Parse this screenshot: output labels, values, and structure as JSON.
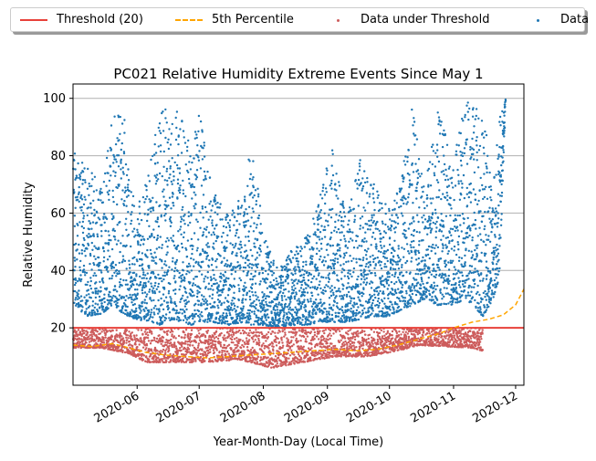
{
  "legend": {
    "items": [
      {
        "label": "Threshold (20)",
        "kind": "solid-line",
        "color": "#e8413a"
      },
      {
        "label": "5th Percentile",
        "kind": "dashed-line",
        "color": "#ffa500"
      },
      {
        "label": "Data under Threshold",
        "kind": "dot",
        "color": "#cd5c5c"
      },
      {
        "label": "Data",
        "kind": "dot",
        "color": "#1f77b4"
      }
    ]
  },
  "chart_data": {
    "type": "scatter",
    "title": "PC021 Relative Humidity Extreme Events Since May 1",
    "xlabel": "Year-Month-Day (Local Time)",
    "ylabel": "Relative Humidity",
    "xlim": [
      "2020-05-01",
      "2020-12-05"
    ],
    "ylim": [
      0,
      105
    ],
    "x_tick_labels": [
      "2020-06",
      "2020-07",
      "2020-08",
      "2020-09",
      "2020-10",
      "2020-11",
      "2020-12"
    ],
    "x_ticks": [
      "2020-06-01",
      "2020-07-01",
      "2020-08-01",
      "2020-09-01",
      "2020-10-01",
      "2020-11-01",
      "2020-12-01"
    ],
    "y_ticks": [
      20,
      40,
      60,
      80,
      100
    ],
    "y_tick_labels": [
      "20",
      "40",
      "60",
      "80",
      "100"
    ],
    "grid": "horizontal",
    "threshold": {
      "name": "Threshold (20)",
      "value": 20,
      "color": "#e8413a"
    },
    "percentile_5th": {
      "name": "5th Percentile",
      "color": "#ffa500",
      "points": [
        [
          "2020-05-01",
          14
        ],
        [
          "2020-05-10",
          13.5
        ],
        [
          "2020-05-20",
          14.5
        ],
        [
          "2020-05-28",
          13
        ],
        [
          "2020-06-05",
          11.5
        ],
        [
          "2020-06-15",
          10.5
        ],
        [
          "2020-06-25",
          10
        ],
        [
          "2020-07-05",
          9.5
        ],
        [
          "2020-07-15",
          10
        ],
        [
          "2020-07-25",
          10.5
        ],
        [
          "2020-08-05",
          11
        ],
        [
          "2020-08-15",
          11.5
        ],
        [
          "2020-08-25",
          12
        ],
        [
          "2020-09-05",
          12.5
        ],
        [
          "2020-09-15",
          12
        ],
        [
          "2020-09-25",
          12.5
        ],
        [
          "2020-10-05",
          14
        ],
        [
          "2020-10-15",
          16
        ],
        [
          "2020-10-25",
          18
        ],
        [
          "2020-11-01",
          20
        ],
        [
          "2020-11-10",
          22
        ],
        [
          "2020-11-18",
          23
        ],
        [
          "2020-11-25",
          24.5
        ],
        [
          "2020-12-01",
          28
        ],
        [
          "2020-12-05",
          33.5
        ]
      ]
    },
    "series": [
      {
        "name": "Data",
        "color": "#1f77b4",
        "envelope": [
          [
            "2020-05-01",
            28,
            82
          ],
          [
            "2020-05-08",
            24,
            76
          ],
          [
            "2020-05-15",
            25,
            70
          ],
          [
            "2020-05-20",
            28,
            93
          ],
          [
            "2020-05-25",
            25,
            97
          ],
          [
            "2020-05-31",
            23,
            60
          ],
          [
            "2020-06-06",
            22,
            74
          ],
          [
            "2020-06-12",
            21,
            97
          ],
          [
            "2020-06-18",
            23,
            95
          ],
          [
            "2020-06-22",
            22,
            97
          ],
          [
            "2020-06-27",
            21,
            80
          ],
          [
            "2020-07-01",
            22,
            96
          ],
          [
            "2020-07-07",
            22,
            68
          ],
          [
            "2020-07-15",
            21,
            60
          ],
          [
            "2020-07-22",
            22,
            67
          ],
          [
            "2020-07-26",
            21,
            85
          ],
          [
            "2020-08-01",
            21,
            55
          ],
          [
            "2020-08-08",
            20,
            40
          ],
          [
            "2020-08-15",
            21,
            48
          ],
          [
            "2020-08-22",
            21,
            52
          ],
          [
            "2020-08-28",
            22,
            65
          ],
          [
            "2020-09-03",
            22,
            84
          ],
          [
            "2020-09-10",
            22,
            58
          ],
          [
            "2020-09-17",
            23,
            80
          ],
          [
            "2020-09-22",
            24,
            72
          ],
          [
            "2020-09-30",
            24,
            62
          ],
          [
            "2020-10-06",
            26,
            70
          ],
          [
            "2020-10-12",
            28,
            97
          ],
          [
            "2020-10-18",
            30,
            68
          ],
          [
            "2020-10-24",
            28,
            99
          ],
          [
            "2020-10-31",
            28,
            78
          ],
          [
            "2020-11-07",
            30,
            100
          ],
          [
            "2020-11-10",
            28,
            100
          ],
          [
            "2020-11-15",
            24,
            98
          ],
          [
            "2020-11-20",
            30,
            70
          ],
          [
            "2020-11-23",
            38,
            93
          ],
          [
            "2020-11-26",
            100,
            100
          ]
        ]
      },
      {
        "name": "Data under Threshold",
        "color": "#cd5c5c",
        "envelope": [
          [
            "2020-05-01",
            13,
            20
          ],
          [
            "2020-05-15",
            13,
            20
          ],
          [
            "2020-05-28",
            11,
            20
          ],
          [
            "2020-06-05",
            8,
            20
          ],
          [
            "2020-06-20",
            8,
            20
          ],
          [
            "2020-07-05",
            8,
            20
          ],
          [
            "2020-07-20",
            9,
            20
          ],
          [
            "2020-08-05",
            6,
            20
          ],
          [
            "2020-08-20",
            8,
            20
          ],
          [
            "2020-09-05",
            10,
            20
          ],
          [
            "2020-09-20",
            10,
            20
          ],
          [
            "2020-10-05",
            12,
            20
          ],
          [
            "2020-10-15",
            14,
            20
          ],
          [
            "2020-11-10",
            13,
            20
          ],
          [
            "2020-11-15",
            12,
            20
          ]
        ]
      }
    ]
  }
}
